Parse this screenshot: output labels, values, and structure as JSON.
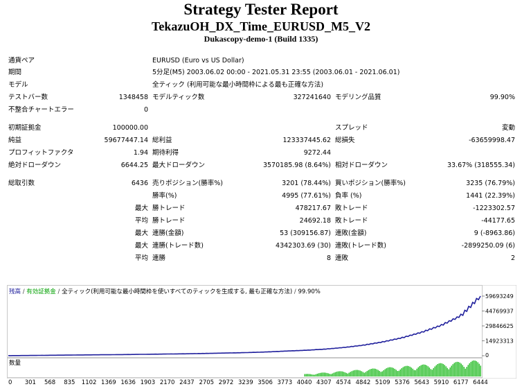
{
  "report": {
    "title": "Strategy Tester Report",
    "subtitle": "TekazuOH_DX_Time_EURUSD_M5_V2",
    "server": "Dukascopy-demo-1 (Build 1335)"
  },
  "settings": {
    "symbol_label": "通貨ペア",
    "symbol_value": "EURUSD (Euro vs US Dollar)",
    "period_label": "期間",
    "period_value": "5分足(M5) 2003.06.02 00:00 - 2021.05.31 23:55 (2003.06.01 - 2021.06.01)",
    "model_label": "モデル",
    "model_value": "全ティック (利用可能な最小時間枠による最も正確な方法)",
    "bars_label": "テストバー数",
    "bars_value": "1348458",
    "ticks_label": "モデルティック数",
    "ticks_value": "327241640",
    "quality_label": "モデリング品質",
    "quality_value": "99.90%",
    "mismatch_label": "不整合チャートエラー",
    "mismatch_value": "0"
  },
  "results": {
    "deposit_label": "初期証拠金",
    "deposit_value": "100000.00",
    "spread_label": "スプレッド",
    "spread_value": "変動",
    "net_label": "純益",
    "net_value": "59677447.14",
    "gross_profit_label": "総利益",
    "gross_profit_value": "123337445.62",
    "gross_loss_label": "総損失",
    "gross_loss_value": "-63659998.47",
    "pf_label": "プロフィットファクタ",
    "pf_value": "1.94",
    "expected_label": "期待利得",
    "expected_value": "9272.44",
    "abs_dd_label": "絶対ドローダウン",
    "abs_dd_value": "6644.25",
    "max_dd_label": "最大ドローダウン",
    "max_dd_value": "3570185.98 (8.64%)",
    "rel_dd_label": "相対ドローダウン",
    "rel_dd_value": "33.67% (318555.34)"
  },
  "trades": {
    "total_label": "総取引数",
    "total_value": "6436",
    "short_label": "売りポジション(勝率%)",
    "short_value": "3201 (78.44%)",
    "long_label": "買いポジション(勝率%)",
    "long_value": "3235 (76.79%)",
    "win_pct_label": "勝率(%)",
    "win_pct_value": "4995 (77.61%)",
    "loss_pct_label": "負率 (%)",
    "loss_pct_value": "1441 (22.39%)",
    "max_label": "最大",
    "avg_label": "平均",
    "largest_win_label": "勝トレード",
    "largest_win_value": "478217.67",
    "largest_loss_label": "敗トレード",
    "largest_loss_value": "-1223302.57",
    "avg_win_label": "勝トレード",
    "avg_win_value": "24692.18",
    "avg_loss_label": "敗トレード",
    "avg_loss_value": "-44177.65",
    "cons_wins_label": "連勝(金額)",
    "cons_wins_value": "53 (309156.87)",
    "cons_losses_label": "連敗(金額)",
    "cons_losses_value": "9 (-8963.86)",
    "cons_profit_label": "連勝(トレード数)",
    "cons_profit_value": "4342303.69 (30)",
    "cons_loss_label": "連敗(トレード数)",
    "cons_loss_value": "-2899250.09 (6)",
    "avg_cons_wins_label": "連勝",
    "avg_cons_wins_value": "8",
    "avg_cons_losses_label": "連敗",
    "avg_cons_losses_value": "2"
  },
  "chart_legend": {
    "balance": "残高",
    "equity": "有効証拠金",
    "separator": " / ",
    "model": "全ティック(利用可能な最小時間枠を使いすべてのティックを生成する, 最も正確な方法)",
    "quality": "99.90%"
  },
  "volume_label": "数量",
  "colors": {
    "balance": "#1f1f9c",
    "equity": "#00a000",
    "volume": "#00b000"
  },
  "chart_data": {
    "type": "line",
    "series": [
      {
        "name": "残高"
      }
    ],
    "x": [
      0,
      301,
      568,
      835,
      1102,
      1369,
      1636,
      1903,
      2170,
      2437,
      2705,
      2972,
      3239,
      3506,
      3773,
      4040,
      4307,
      4574,
      4842,
      5109,
      5376,
      5643,
      5910,
      6177,
      6444
    ],
    "y": [
      100000,
      250000,
      450000,
      650000,
      850000,
      1000000,
      1200000,
      1450000,
      1700000,
      1950000,
      2300000,
      2700000,
      3100000,
      3700000,
      4600000,
      5400000,
      6500000,
      8200000,
      10500000,
      13800000,
      18000000,
      23500000,
      30500000,
      40000000,
      59693249
    ],
    "xticks": [
      "0",
      "301",
      "568",
      "835",
      "1102",
      "1369",
      "1636",
      "1903",
      "2170",
      "2437",
      "2705",
      "2972",
      "3239",
      "3506",
      "3773",
      "4040",
      "4307",
      "4574",
      "4842",
      "5109",
      "5376",
      "5643",
      "5910",
      "6177",
      "6444"
    ],
    "yticks": [
      "59693249",
      "44769937",
      "29846625",
      "14923313",
      "0"
    ],
    "ylim": [
      0,
      59693249
    ],
    "xlim": [
      0,
      6444
    ],
    "volume_start": 4040,
    "grid": false
  }
}
